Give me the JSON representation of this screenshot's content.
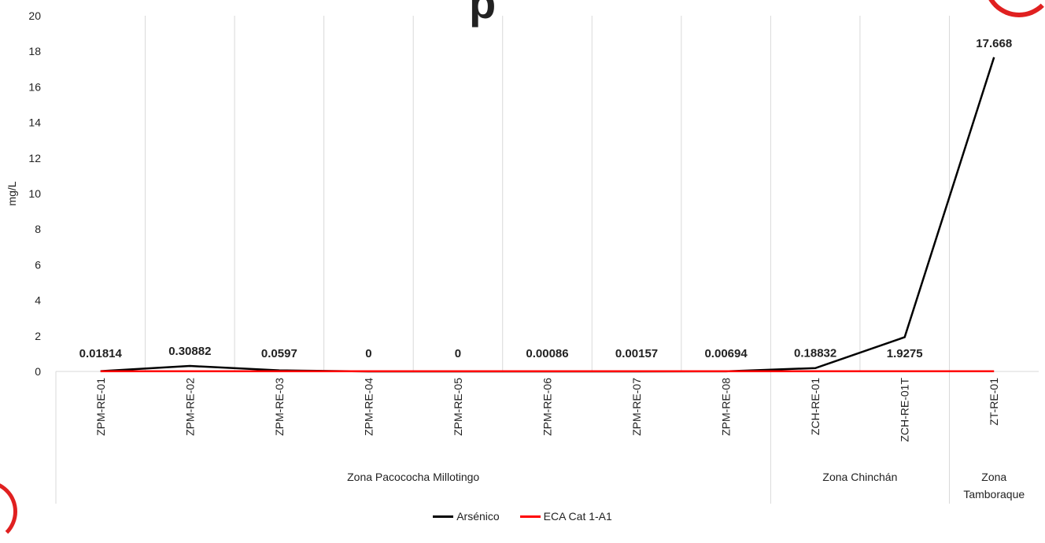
{
  "title_fragment": "p",
  "chart_data": {
    "type": "line",
    "title": "",
    "xlabel": "",
    "ylabel": "mg/L",
    "ylim": [
      0,
      20
    ],
    "yticks": [
      0,
      2,
      4,
      6,
      8,
      10,
      12,
      14,
      16,
      18,
      20
    ],
    "grid": "vertical separators",
    "legend_position": "bottom-center",
    "categories": [
      "ZPM-RE-01",
      "ZPM-RE-02",
      "ZPM-RE-03",
      "ZPM-RE-04",
      "ZPM-RE-05",
      "ZPM-RE-06",
      "ZPM-RE-07",
      "ZPM-RE-08",
      "ZCH-RE-01",
      "ZCH-RE-01T",
      "ZT-RE-01"
    ],
    "groups": [
      {
        "label": "Zona Pacococha Millotingo",
        "start": 0,
        "end": 7
      },
      {
        "label": "Zona Chinchán",
        "start": 8,
        "end": 9
      },
      {
        "label": "Zona Tamboraque",
        "start": 10,
        "end": 10
      }
    ],
    "series": [
      {
        "name": "Arsénico",
        "color": "#000000",
        "values": [
          0.01814,
          0.30882,
          0.0597,
          0,
          0,
          0.00086,
          0.00157,
          0.00694,
          0.18832,
          1.9275,
          17.668
        ]
      },
      {
        "name": "ECA Cat 1-A1",
        "color": "#ff0000",
        "values": [
          0.01,
          0.01,
          0.01,
          0.01,
          0.01,
          0.01,
          0.01,
          0.01,
          0.01,
          0.01,
          0.01
        ]
      }
    ],
    "data_labels": [
      "0.01814",
      "0.30882",
      "0.0597",
      "0",
      "0",
      "0.00086",
      "0.00157",
      "0.00694",
      "0.18832",
      "1.9275",
      "17.668"
    ]
  }
}
